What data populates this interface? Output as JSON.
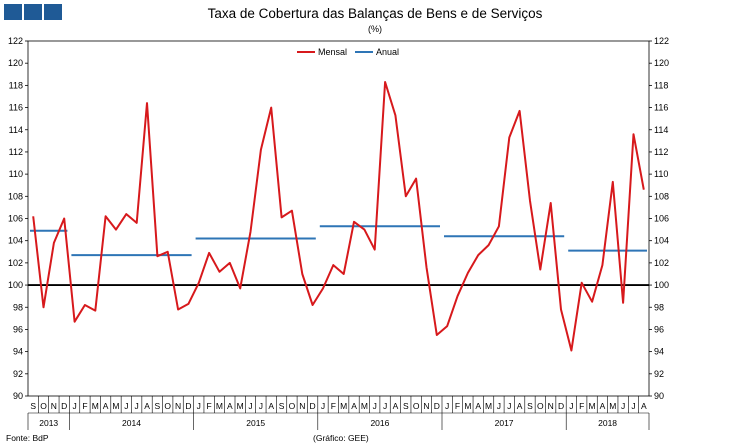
{
  "chart_data": {
    "type": "line",
    "title": "Taxa de Cobertura das Balanças de Bens e de Serviços",
    "subtitle": "(%)",
    "ylim": [
      90,
      122
    ],
    "yticks": [
      90,
      92,
      94,
      96,
      98,
      100,
      102,
      104,
      106,
      108,
      110,
      112,
      114,
      116,
      118,
      120,
      122
    ],
    "reference_line": 100,
    "legend_position": "top-center",
    "x_month_labels": [
      "S",
      "O",
      "N",
      "D",
      "J",
      "F",
      "M",
      "A",
      "M",
      "J",
      "J",
      "A",
      "S",
      "O",
      "N",
      "D",
      "J",
      "F",
      "M",
      "A",
      "M",
      "J",
      "J",
      "A",
      "S",
      "O",
      "N",
      "D",
      "J",
      "F",
      "M",
      "A",
      "M",
      "J",
      "J",
      "A",
      "S",
      "O",
      "N",
      "D",
      "J",
      "F",
      "M",
      "A",
      "M",
      "J",
      "J",
      "A",
      "S",
      "O",
      "N",
      "D",
      "J",
      "F",
      "M",
      "A",
      "M",
      "J",
      "J",
      "A"
    ],
    "year_labels": [
      {
        "year": "2013",
        "start": 0,
        "end": 3
      },
      {
        "year": "2014",
        "start": 4,
        "end": 15
      },
      {
        "year": "2015",
        "start": 16,
        "end": 27
      },
      {
        "year": "2016",
        "start": 28,
        "end": 39
      },
      {
        "year": "2017",
        "start": 40,
        "end": 51
      },
      {
        "year": "2018",
        "start": 52,
        "end": 59
      }
    ],
    "series": [
      {
        "name": "Mensal",
        "color": "#d7191c",
        "values": [
          106.2,
          98.0,
          103.8,
          106.0,
          96.7,
          98.2,
          97.7,
          106.2,
          105.0,
          106.4,
          105.6,
          116.4,
          102.6,
          103.0,
          97.8,
          98.3,
          100.2,
          102.9,
          101.2,
          102.0,
          99.7,
          104.8,
          112.2,
          116.0,
          106.1,
          106.7,
          101.0,
          98.2,
          99.7,
          101.8,
          101.0,
          105.7,
          105.0,
          103.2,
          118.3,
          115.3,
          108.0,
          109.6,
          101.6,
          95.5,
          96.3,
          99.0,
          101.1,
          102.7,
          103.6,
          105.3,
          113.3,
          115.7,
          107.6,
          101.4,
          107.4,
          97.8,
          94.1,
          100.2,
          98.5,
          101.8,
          109.3,
          98.4,
          113.6,
          108.6
        ]
      },
      {
        "name": "Anual",
        "color": "#2e75b6",
        "segments": [
          {
            "year": "2013",
            "value": 104.9
          },
          {
            "year": "2014",
            "value": 102.7
          },
          {
            "year": "2015",
            "value": 104.2
          },
          {
            "year": "2016",
            "value": 105.3
          },
          {
            "year": "2017",
            "value": 104.4
          },
          {
            "year": "2018",
            "value": 103.1
          }
        ]
      }
    ]
  },
  "footer": {
    "source": "Fonte:  BdP",
    "credit": "(Gráfico:  GEE)"
  }
}
